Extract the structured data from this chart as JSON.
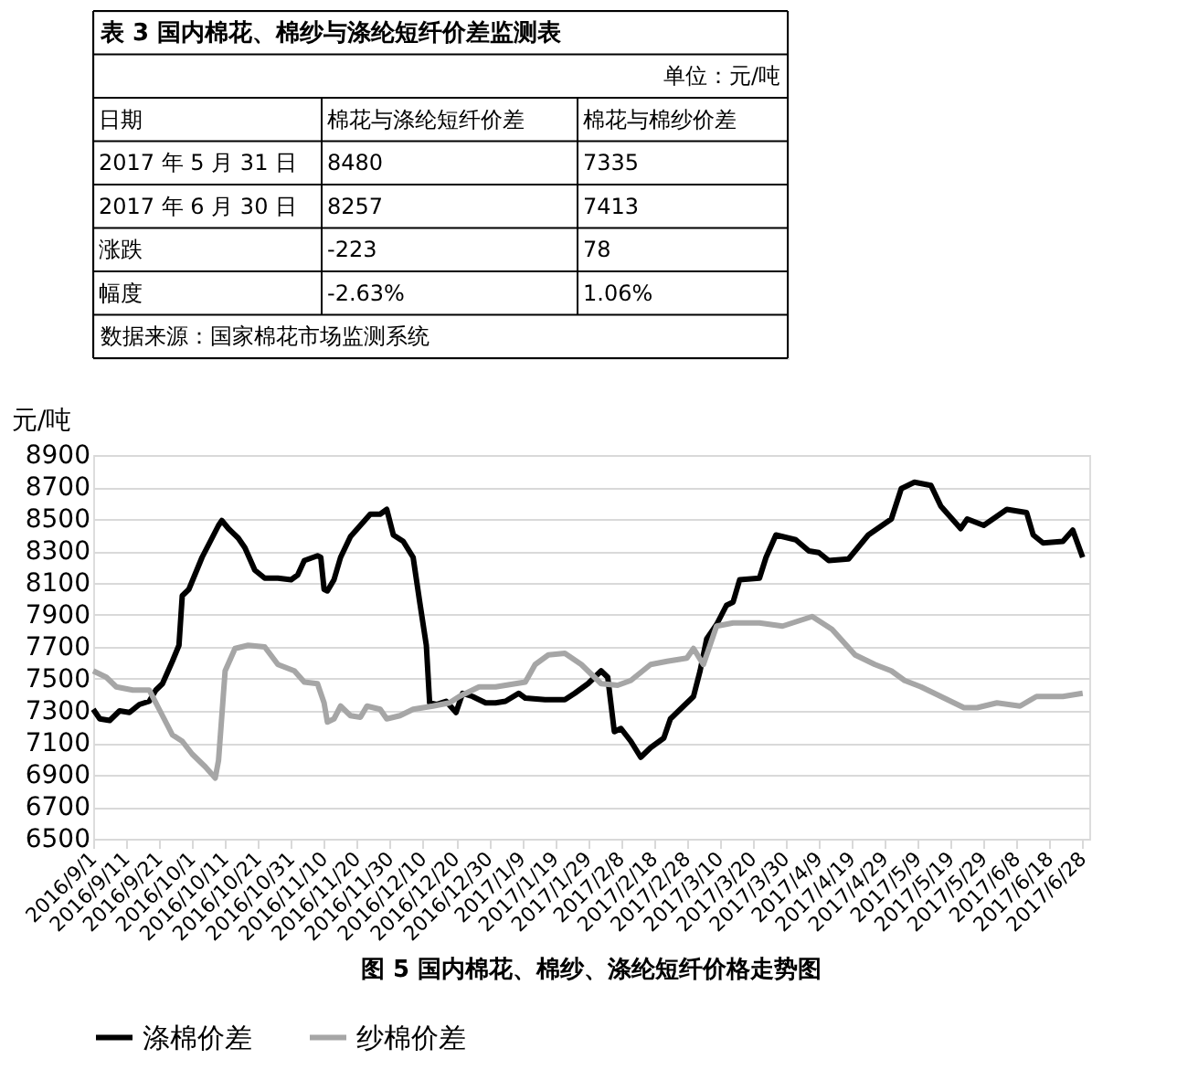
{
  "chart_data": [
    {
      "type": "other",
      "title": "表 3 国内棉花、棉纱与涤纶短纤价差监测表",
      "subtitle": "单位：元/吨",
      "categories": [
        "日期",
        "棉花与涤纶短纤价差",
        "棉花与棉纱价差"
      ],
      "y_categories": [
        "2017 年 5 月 31 日",
        "2017 年 6 月 30 日",
        "涨跌",
        "幅度"
      ],
      "cell_labels": [
        [
          "8480",
          "7335"
        ],
        [
          "8257",
          "7413"
        ],
        [
          "-223",
          "78"
        ],
        [
          "-2.63%",
          "1.06%"
        ]
      ],
      "annotations": [
        "数据来源：国家棉花市场监测系统"
      ]
    },
    {
      "type": "line",
      "ylabel": "元/吨",
      "annotations": [
        "图 5 国内棉花、棉纱、涤纶短纤价格走势图"
      ],
      "ylim": [
        6500,
        8900
      ],
      "yticks": [
        6500,
        6700,
        6900,
        7100,
        7300,
        7500,
        7700,
        7900,
        8100,
        8300,
        8500,
        8700,
        8900
      ],
      "xlim": [
        "2016-09-01",
        "2017-06-30"
      ],
      "xticks": [
        {
          "value": "2016-09-01",
          "label": "2016/9/1"
        },
        {
          "value": "2016-09-11",
          "label": "2016/9/11"
        },
        {
          "value": "2016-09-21",
          "label": "2016/9/21"
        },
        {
          "value": "2016-10-01",
          "label": "2016/10/1"
        },
        {
          "value": "2016-10-11",
          "label": "2016/10/11"
        },
        {
          "value": "2016-10-21",
          "label": "2016/10/21"
        },
        {
          "value": "2016-10-31",
          "label": "2016/10/31"
        },
        {
          "value": "2016-11-10",
          "label": "2016/11/10"
        },
        {
          "value": "2016-11-20",
          "label": "2016/11/20"
        },
        {
          "value": "2016-11-30",
          "label": "2016/11/30"
        },
        {
          "value": "2016-12-10",
          "label": "2016/12/10"
        },
        {
          "value": "2016-12-20",
          "label": "2016/12/20"
        },
        {
          "value": "2016-12-30",
          "label": "2016/12/30"
        },
        {
          "value": "2017-01-09",
          "label": "2017/1/9"
        },
        {
          "value": "2017-01-19",
          "label": "2017/1/19"
        },
        {
          "value": "2017-01-29",
          "label": "2017/1/29"
        },
        {
          "value": "2017-02-08",
          "label": "2017/2/8"
        },
        {
          "value": "2017-02-18",
          "label": "2017/2/18"
        },
        {
          "value": "2017-02-28",
          "label": "2017/2/28"
        },
        {
          "value": "2017-03-10",
          "label": "2017/3/10"
        },
        {
          "value": "2017-03-20",
          "label": "2017/3/20"
        },
        {
          "value": "2017-03-30",
          "label": "2017/3/30"
        },
        {
          "value": "2017-04-09",
          "label": "2017/4/9"
        },
        {
          "value": "2017-04-19",
          "label": "2017/4/19"
        },
        {
          "value": "2017-04-29",
          "label": "2017/4/29"
        },
        {
          "value": "2017-05-09",
          "label": "2017/5/9"
        },
        {
          "value": "2017-05-19",
          "label": "2017/5/19"
        },
        {
          "value": "2017-05-29",
          "label": "2017/5/29"
        },
        {
          "value": "2017-06-08",
          "label": "2017/6/8"
        },
        {
          "value": "2017-06-18",
          "label": "2017/6/18"
        },
        {
          "value": "2017-06-28",
          "label": "2017/6/28"
        }
      ],
      "grid": "y",
      "legend": "bottom",
      "marker": "none",
      "line_style": "solid",
      "series": [
        {
          "name": "涤棉价差",
          "color": "#000000",
          "x": [
            "2016-09-01",
            "2016-09-03",
            "2016-09-06",
            "2016-09-09",
            "2016-09-12",
            "2016-09-15",
            "2016-09-18",
            "2016-09-20",
            "2016-09-22",
            "2016-09-25",
            "2016-09-27",
            "2016-09-28",
            "2016-09-30",
            "2016-10-04",
            "2016-10-09",
            "2016-10-10",
            "2016-10-12",
            "2016-10-15",
            "2016-10-17",
            "2016-10-20",
            "2016-10-23",
            "2016-10-27",
            "2016-10-31",
            "2016-11-02",
            "2016-11-04",
            "2016-11-08",
            "2016-11-09",
            "2016-11-10",
            "2016-11-11",
            "2016-11-13",
            "2016-11-15",
            "2016-11-18",
            "2016-11-21",
            "2016-11-24",
            "2016-11-27",
            "2016-11-29",
            "2016-12-01",
            "2016-12-04",
            "2016-12-07",
            "2016-12-09",
            "2016-12-11",
            "2016-12-12",
            "2016-12-14",
            "2016-12-17",
            "2016-12-20",
            "2016-12-22",
            "2016-12-25",
            "2016-12-29",
            "2017-01-01",
            "2017-01-04",
            "2017-01-08",
            "2017-01-10",
            "2017-01-16",
            "2017-01-22",
            "2017-01-25",
            "2017-01-29",
            "2017-02-02",
            "2017-02-04",
            "2017-02-06",
            "2017-02-08",
            "2017-02-11",
            "2017-02-14",
            "2017-02-17",
            "2017-02-21",
            "2017-02-23",
            "2017-02-27",
            "2017-03-02",
            "2017-03-04",
            "2017-03-06",
            "2017-03-09",
            "2017-03-12",
            "2017-03-14",
            "2017-03-16",
            "2017-03-22",
            "2017-03-24",
            "2017-03-27",
            "2017-04-02",
            "2017-04-06",
            "2017-04-09",
            "2017-04-12",
            "2017-04-18",
            "2017-04-24",
            "2017-05-01",
            "2017-05-04",
            "2017-05-08",
            "2017-05-13",
            "2017-05-16",
            "2017-05-22",
            "2017-05-24",
            "2017-05-29",
            "2017-06-05",
            "2017-06-11",
            "2017-06-13",
            "2017-06-16",
            "2017-06-22",
            "2017-06-25",
            "2017-06-28"
          ],
          "values": [
            7310,
            7250,
            7240,
            7300,
            7290,
            7340,
            7360,
            7430,
            7470,
            7610,
            7710,
            8020,
            8060,
            8260,
            8460,
            8490,
            8440,
            8380,
            8320,
            8180,
            8130,
            8130,
            8120,
            8150,
            8240,
            8270,
            8260,
            8060,
            8050,
            8120,
            8260,
            8390,
            8460,
            8530,
            8530,
            8560,
            8400,
            8360,
            8260,
            7980,
            7710,
            7350,
            7340,
            7360,
            7290,
            7410,
            7390,
            7350,
            7350,
            7360,
            7410,
            7380,
            7370,
            7370,
            7410,
            7470,
            7550,
            7510,
            7170,
            7190,
            7110,
            7010,
            7070,
            7130,
            7250,
            7330,
            7390,
            7550,
            7750,
            7840,
            7960,
            7980,
            8120,
            8130,
            8260,
            8400,
            8370,
            8300,
            8290,
            8240,
            8250,
            8400,
            8500,
            8690,
            8730,
            8710,
            8580,
            8440,
            8500,
            8460,
            8560,
            8540,
            8400,
            8350,
            8360,
            8430,
            8260
          ]
        },
        {
          "name": "纱棉价差",
          "color": "#a6a6a6",
          "x": [
            "2016-09-01",
            "2016-09-05",
            "2016-09-08",
            "2016-09-13",
            "2016-09-18",
            "2016-09-21",
            "2016-09-25",
            "2016-09-28",
            "2016-10-01",
            "2016-10-05",
            "2016-10-08",
            "2016-10-09",
            "2016-10-11",
            "2016-10-14",
            "2016-10-18",
            "2016-10-23",
            "2016-10-27",
            "2016-11-01",
            "2016-11-04",
            "2016-11-08",
            "2016-11-10",
            "2016-11-11",
            "2016-11-13",
            "2016-11-15",
            "2016-11-18",
            "2016-11-21",
            "2016-11-23",
            "2016-11-27",
            "2016-11-29",
            "2016-12-03",
            "2016-12-07",
            "2016-12-13",
            "2016-12-18",
            "2016-12-21",
            "2016-12-27",
            "2017-01-01",
            "2017-01-07",
            "2017-01-10",
            "2017-01-13",
            "2017-01-17",
            "2017-01-22",
            "2017-01-27",
            "2017-02-02",
            "2017-02-07",
            "2017-02-11",
            "2017-02-17",
            "2017-02-22",
            "2017-02-28",
            "2017-03-02",
            "2017-03-05",
            "2017-03-09",
            "2017-03-14",
            "2017-03-22",
            "2017-03-29",
            "2017-04-07",
            "2017-04-13",
            "2017-04-20",
            "2017-04-26",
            "2017-05-01",
            "2017-05-05",
            "2017-05-10",
            "2017-05-18",
            "2017-05-23",
            "2017-05-27",
            "2017-06-02",
            "2017-06-09",
            "2017-06-14",
            "2017-06-22",
            "2017-06-28"
          ],
          "values": [
            7550,
            7510,
            7450,
            7430,
            7430,
            7310,
            7150,
            7110,
            7030,
            6950,
            6880,
            6990,
            7550,
            7690,
            7710,
            7700,
            7590,
            7550,
            7480,
            7470,
            7350,
            7230,
            7250,
            7330,
            7270,
            7260,
            7330,
            7310,
            7250,
            7270,
            7310,
            7330,
            7350,
            7390,
            7450,
            7450,
            7470,
            7480,
            7590,
            7650,
            7660,
            7590,
            7470,
            7460,
            7490,
            7590,
            7610,
            7630,
            7690,
            7590,
            7830,
            7850,
            7850,
            7830,
            7890,
            7810,
            7650,
            7590,
            7550,
            7490,
            7450,
            7370,
            7320,
            7320,
            7350,
            7330,
            7390,
            7390,
            7410
          ]
        }
      ]
    }
  ]
}
